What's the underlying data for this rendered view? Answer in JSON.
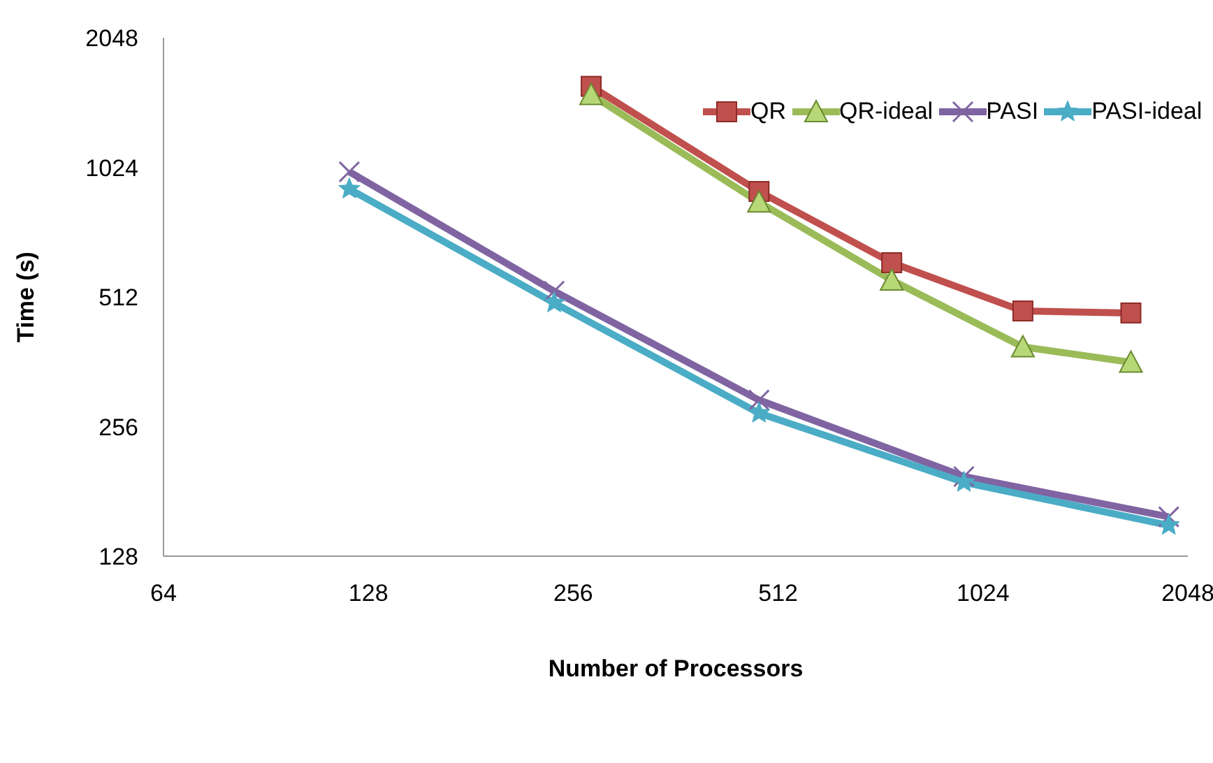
{
  "chart_data": {
    "type": "line",
    "xlabel": "Number of Processors",
    "ylabel": "Time (s)",
    "log": "xy",
    "xlim": [
      64,
      2048
    ],
    "xticks": [
      64,
      128,
      256,
      512,
      1024,
      2048
    ],
    "ylim": [
      128,
      2048
    ],
    "yticks": [
      128,
      256,
      512,
      1024,
      2048
    ],
    "grid": false,
    "legend": "top right",
    "series": [
      {
        "name": "QR",
        "color": "#c0504d",
        "marker": "square",
        "x": [
          272,
          480,
          752,
          1172,
          1689
        ],
        "values": [
          1579,
          900,
          615,
          475,
          470
        ]
      },
      {
        "name": "QR-ideal",
        "color": "#9bbb59",
        "marker": "triangle",
        "x": [
          272,
          480,
          752,
          1172,
          1689
        ],
        "values": [
          1510,
          850,
          560,
          392,
          361
        ]
      },
      {
        "name": "PASI",
        "color": "#8064a2",
        "marker": "cross",
        "x": [
          120,
          240,
          480,
          960,
          1920
        ],
        "values": [
          1000,
          528,
          295,
          196,
          158
        ]
      },
      {
        "name": "PASI-ideal",
        "color": "#4bacc6",
        "marker": "star",
        "x": [
          120,
          240,
          480,
          960,
          1920
        ],
        "values": [
          912,
          496,
          275,
          190,
          151
        ]
      }
    ]
  }
}
